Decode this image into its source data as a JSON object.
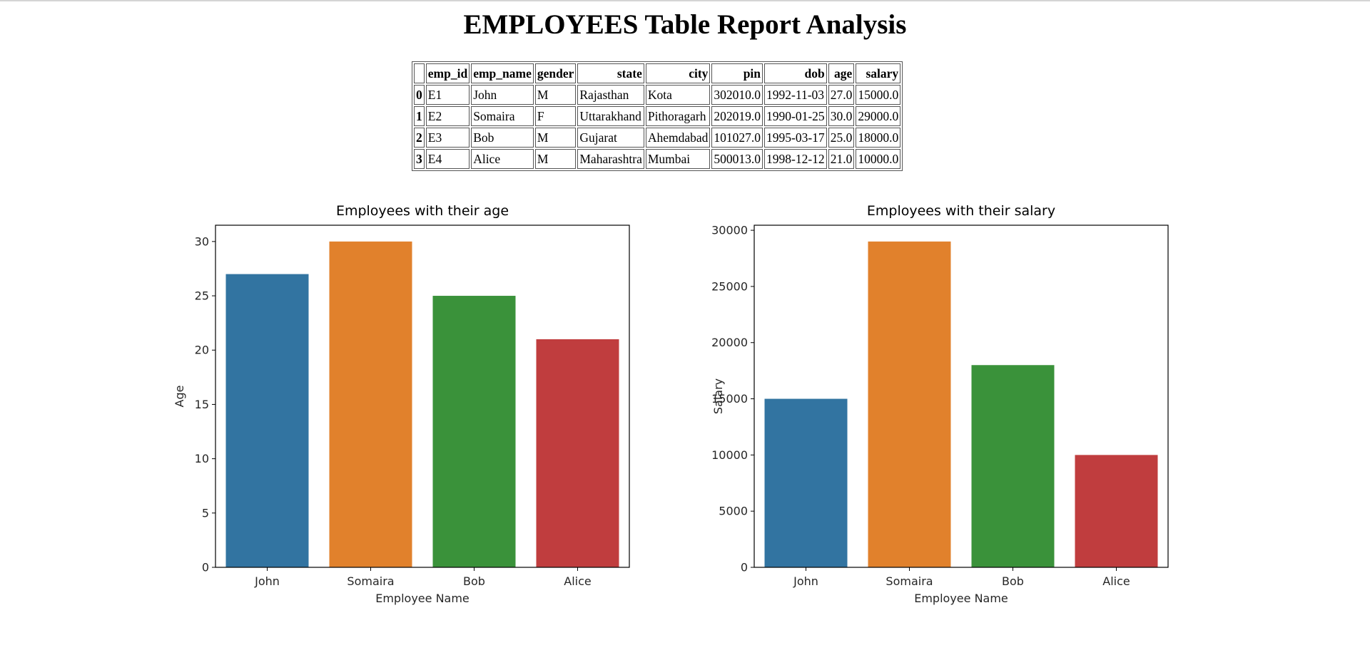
{
  "page": {
    "title": "EMPLOYEES Table Report Analysis"
  },
  "table": {
    "columns": [
      "",
      "emp_id",
      "emp_name",
      "gender",
      "state",
      "city",
      "pin",
      "dob",
      "age",
      "salary"
    ],
    "rows": [
      [
        "0",
        "E1",
        "John",
        "M",
        "Rajasthan",
        "Kota",
        "302010.0",
        "1992-11-03",
        "27.0",
        "15000.0"
      ],
      [
        "1",
        "E2",
        "Somaira",
        "F",
        "Uttarakhand",
        "Pithoragarh",
        "202019.0",
        "1990-01-25",
        "30.0",
        "29000.0"
      ],
      [
        "2",
        "E3",
        "Bob",
        "M",
        "Gujarat",
        "Ahemdabad",
        "101027.0",
        "1995-03-17",
        "25.0",
        "18000.0"
      ],
      [
        "3",
        "E4",
        "Alice",
        "M",
        "Maharashtra",
        "Mumbai",
        "500013.0",
        "1998-12-12",
        "21.0",
        "10000.0"
      ]
    ]
  },
  "chart_data": [
    {
      "type": "bar",
      "title": "Employees with their age",
      "xlabel": "Employee Name",
      "ylabel": "Age",
      "categories": [
        "John",
        "Somaira",
        "Bob",
        "Alice"
      ],
      "values": [
        27,
        30,
        25,
        21
      ],
      "ylim": [
        0,
        31.5
      ],
      "yticks": [
        0,
        5,
        10,
        15,
        20,
        25,
        30
      ],
      "colors": [
        "#3274a1",
        "#e1812c",
        "#3a923a",
        "#c03d3e"
      ],
      "grid": false
    },
    {
      "type": "bar",
      "title": "Employees with their salary",
      "xlabel": "Employee Name",
      "ylabel": "Salary",
      "categories": [
        "John",
        "Somaira",
        "Bob",
        "Alice"
      ],
      "values": [
        15000,
        29000,
        18000,
        10000
      ],
      "ylim": [
        0,
        30450
      ],
      "yticks": [
        0,
        5000,
        10000,
        15000,
        20000,
        25000,
        30000
      ],
      "colors": [
        "#3274a1",
        "#e1812c",
        "#3a923a",
        "#c03d3e"
      ],
      "grid": false
    }
  ]
}
